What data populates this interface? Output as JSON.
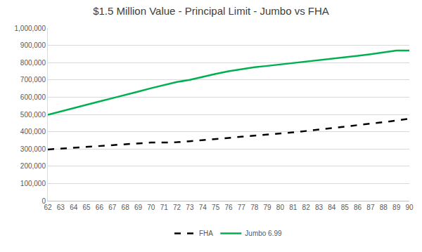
{
  "chart_data": {
    "type": "line",
    "title": "$1.5 Million Value - Principal Limit - Jumbo vs FHA",
    "x": [
      62,
      63,
      64,
      65,
      66,
      67,
      68,
      69,
      70,
      71,
      72,
      73,
      74,
      75,
      76,
      77,
      78,
      79,
      80,
      81,
      82,
      83,
      84,
      85,
      86,
      87,
      88,
      89,
      90
    ],
    "xlim": [
      62,
      90
    ],
    "xticks": [
      62,
      63,
      64,
      65,
      66,
      67,
      68,
      69,
      70,
      71,
      72,
      73,
      74,
      75,
      76,
      77,
      78,
      79,
      80,
      81,
      82,
      83,
      84,
      85,
      86,
      87,
      88,
      89,
      90
    ],
    "ylim": [
      0,
      1000000
    ],
    "yticks": [
      0,
      {
        "value": 100000,
        "label": "100,000"
      },
      {
        "value": 200000,
        "label": "200,000"
      },
      {
        "value": 300000,
        "label": "300,000"
      },
      {
        "value": 400000,
        "label": "400,000"
      },
      {
        "value": 500000,
        "label": "500,000"
      },
      {
        "value": 600000,
        "label": "600,000"
      },
      {
        "value": 700000,
        "label": "700,000"
      },
      {
        "value": 800000,
        "label": "800,000"
      },
      {
        "value": 900000,
        "label": "900,000"
      },
      {
        "value": 1000000,
        "label": "1,000,000"
      }
    ],
    "grid": true,
    "legend": "bottom",
    "series": [
      {
        "name": "FHA",
        "color": "#000000",
        "line_style": "dash",
        "values": [
          297000,
          302000,
          307000,
          312000,
          317000,
          322000,
          327000,
          333000,
          337000,
          337000,
          339000,
          345000,
          351000,
          358000,
          363000,
          370000,
          377000,
          382000,
          389000,
          396000,
          404000,
          412000,
          420000,
          429000,
          438000,
          447000,
          455000,
          465000,
          475000
        ]
      },
      {
        "name": "Jumbo 6.99",
        "color": "#00b050",
        "line_style": "solid",
        "values": [
          498000,
          518000,
          538000,
          556000,
          575000,
          594000,
          612000,
          632000,
          652000,
          670000,
          688000,
          700000,
          718000,
          735000,
          750000,
          763000,
          773000,
          781000,
          789000,
          797000,
          805000,
          813000,
          821000,
          830000,
          839000,
          849000,
          858000,
          870000,
          870000
        ]
      }
    ]
  }
}
